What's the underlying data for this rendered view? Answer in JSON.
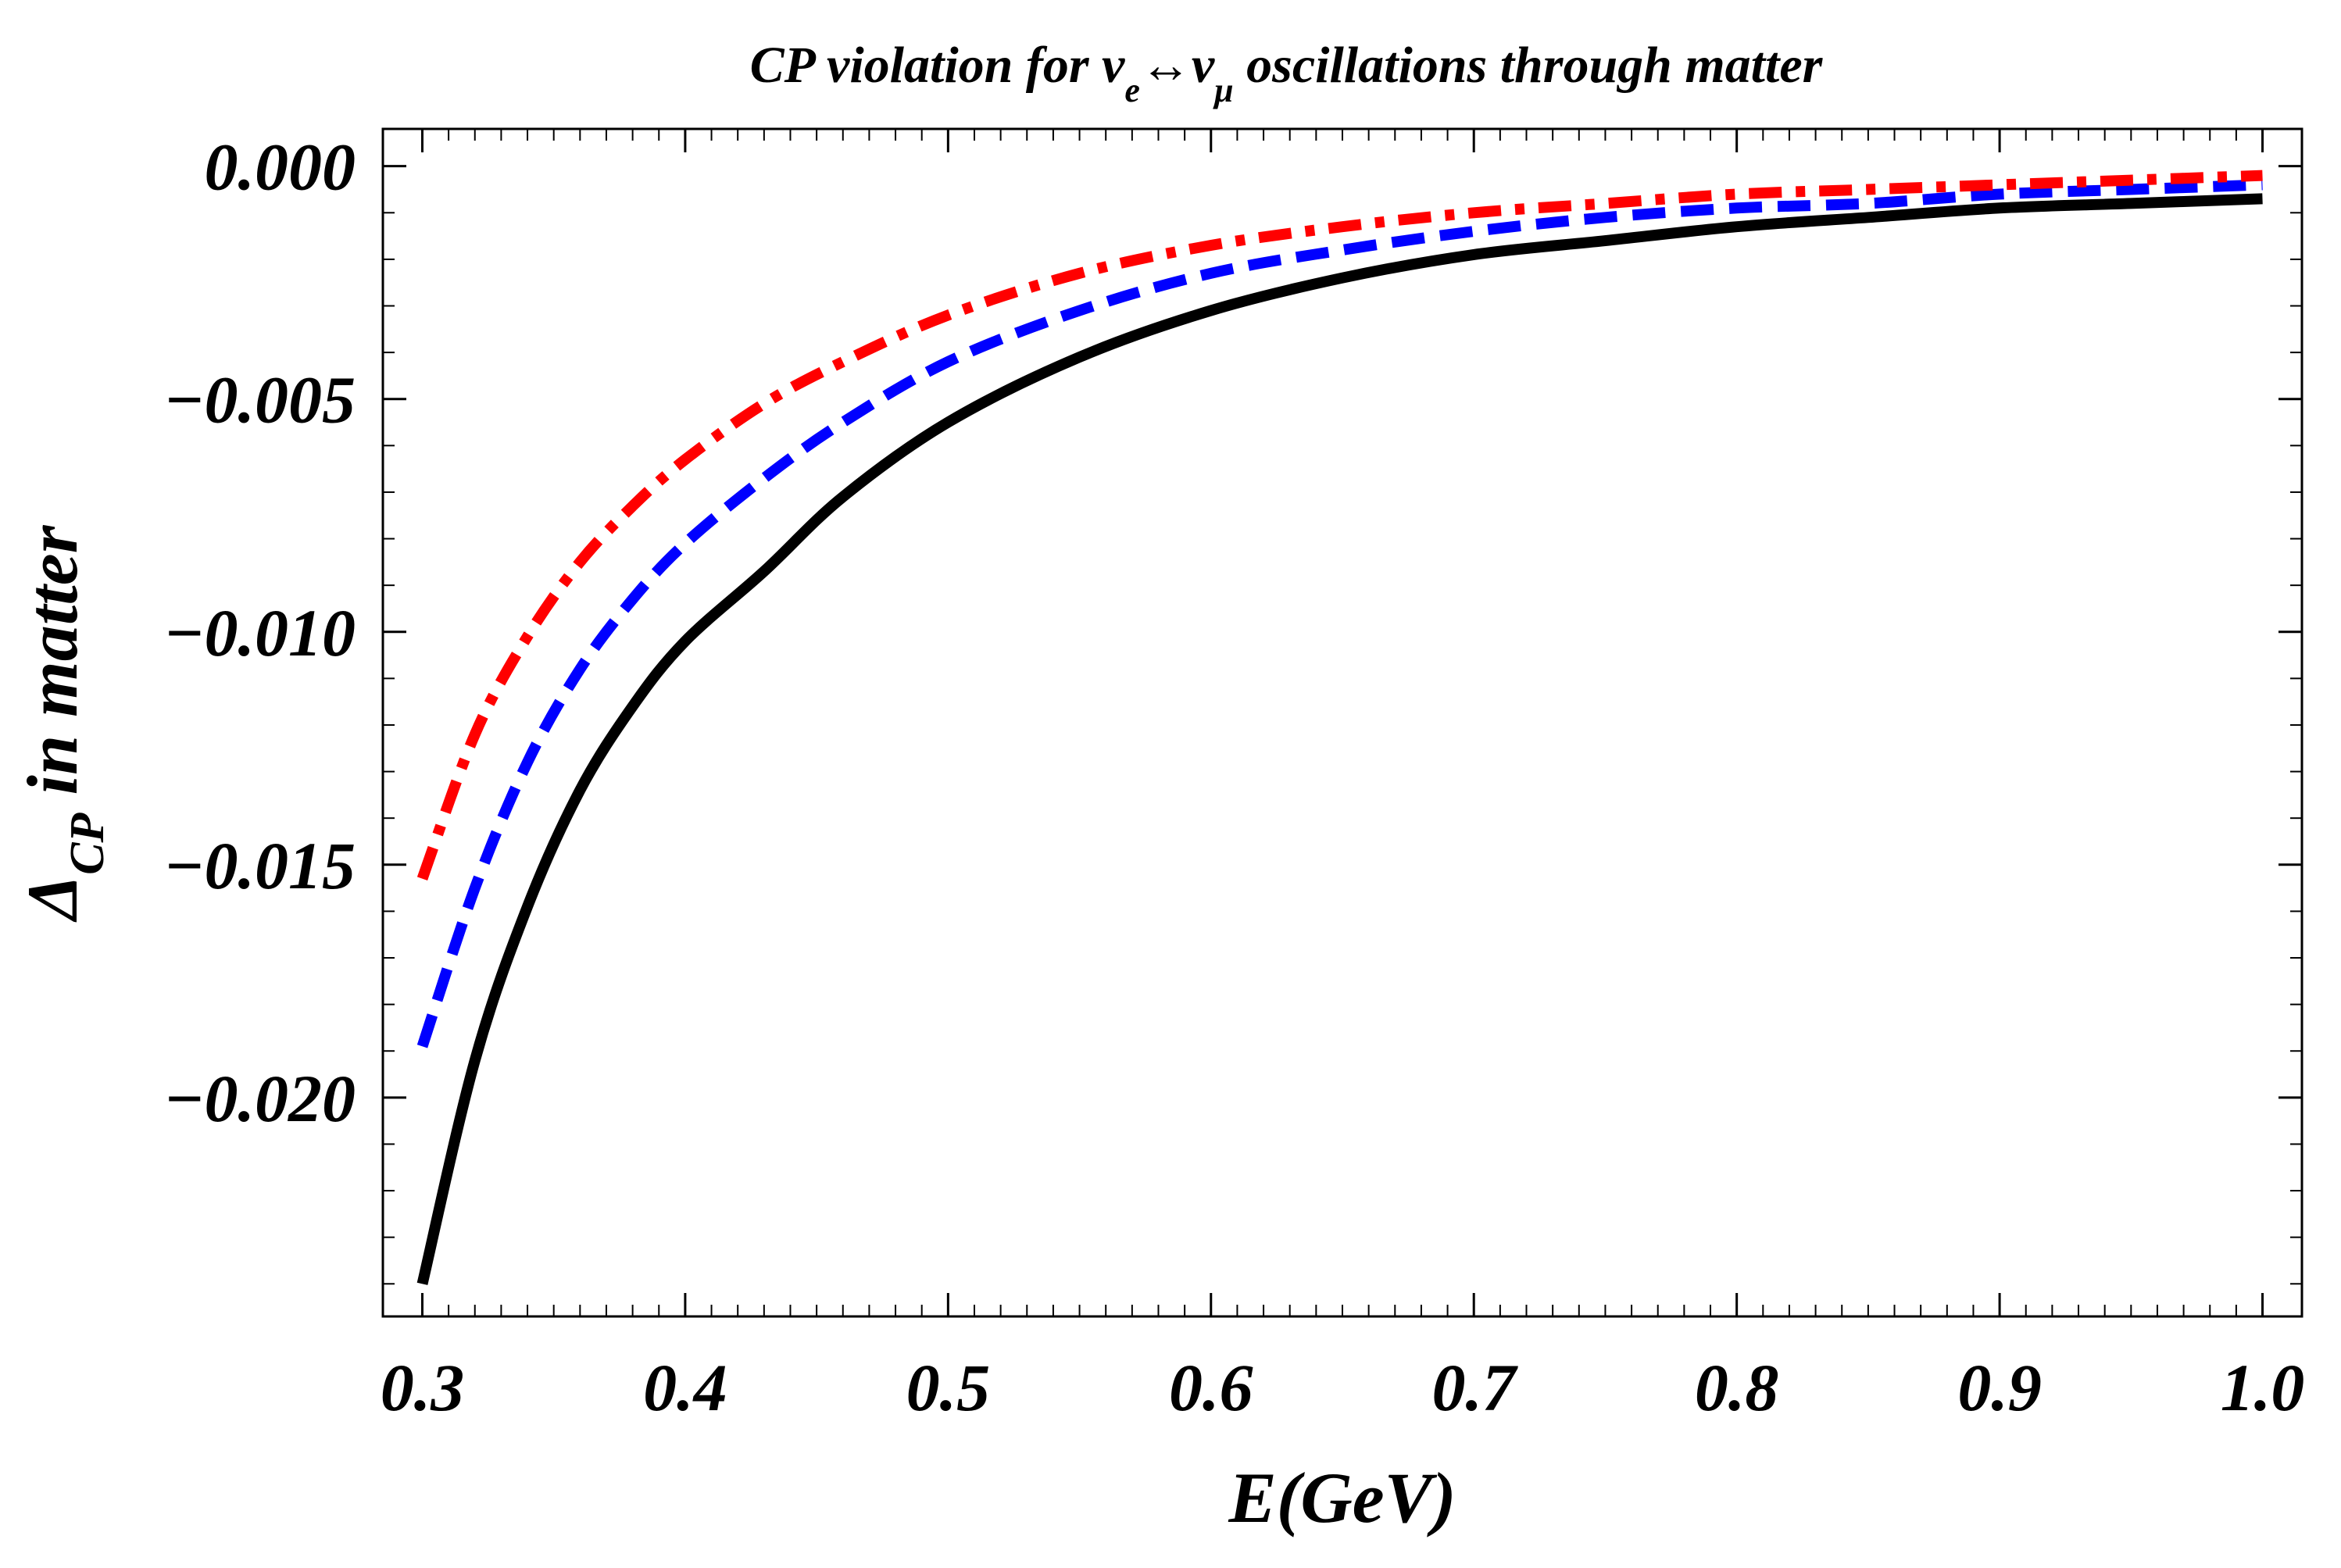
{
  "chart_data": {
    "type": "line",
    "title": {
      "prefix": "CP violation  for ",
      "nu": "ν",
      "sub_e": "e",
      "arrow": "↔",
      "sub_mu": "μ",
      "suffix": " oscillations through matter"
    },
    "xlabel": "E(GeV)",
    "ylabel": {
      "main": "Δ",
      "sub": "CP",
      "rest": " in matter"
    },
    "xlim": [
      0.285,
      1.015
    ],
    "ylim": [
      -0.0247,
      0.0008
    ],
    "xticks": [
      0.3,
      0.4,
      0.5,
      0.6,
      0.7,
      0.8,
      0.9,
      1.0
    ],
    "xtick_labels": [
      "0.3",
      "0.4",
      "0.5",
      "0.6",
      "0.7",
      "0.8",
      "0.9",
      "1.0"
    ],
    "yticks": [
      0.0,
      -0.005,
      -0.01,
      -0.015,
      -0.02
    ],
    "ytick_labels": [
      "0.000",
      "−0.005",
      "−0.010",
      "−0.015",
      "−0.020"
    ],
    "x": [
      0.3,
      0.32,
      0.34,
      0.36,
      0.38,
      0.4,
      0.43,
      0.46,
      0.5,
      0.55,
      0.6,
      0.65,
      0.7,
      0.75,
      0.8,
      0.85,
      0.9,
      0.95,
      1.0
    ],
    "series": [
      {
        "name": "solid-black",
        "color": "#000000",
        "style": "solid",
        "values": [
          -0.024,
          -0.0192,
          -0.0159,
          -0.0134,
          -0.0116,
          -0.0102,
          -0.0087,
          -0.0071,
          -0.0055,
          -0.0041,
          -0.0031,
          -0.0024,
          -0.0019,
          -0.0016,
          -0.0013,
          -0.0011,
          -0.0009,
          -0.0008,
          -0.0007
        ]
      },
      {
        "name": "dashed-blue",
        "color": "#0000ff",
        "style": "dashed",
        "values": [
          -0.0189,
          -0.0155,
          -0.0128,
          -0.0108,
          -0.0093,
          -0.0081,
          -0.0067,
          -0.0055,
          -0.0042,
          -0.0031,
          -0.0023,
          -0.0018,
          -0.0014,
          -0.0011,
          -0.0009,
          -0.0008,
          -0.0006,
          -0.0005,
          -0.0004
        ]
      },
      {
        "name": "dashdot-red",
        "color": "#ff0000",
        "style": "dashdot",
        "values": [
          -0.0153,
          -0.0122,
          -0.0101,
          -0.0085,
          -0.0073,
          -0.0063,
          -0.0051,
          -0.0042,
          -0.0032,
          -0.0023,
          -0.0017,
          -0.0013,
          -0.001,
          -0.0008,
          -0.0006,
          -0.0005,
          -0.0004,
          -0.0003,
          -0.0002
        ]
      }
    ]
  }
}
